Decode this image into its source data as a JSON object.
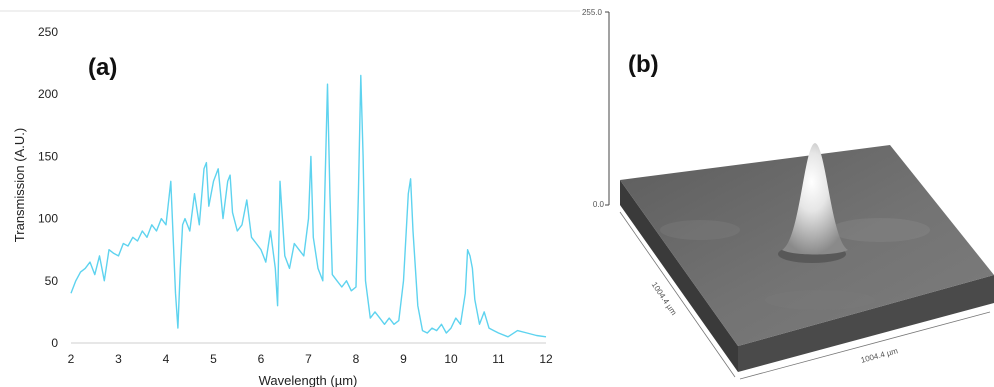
{
  "colors": {
    "series": "#5ed3ef",
    "axis": "#d0d0d0",
    "surface": "#6b6b6b"
  },
  "chart_data": [
    {
      "panel_label": "(a)",
      "type": "line",
      "xlabel": "Wavelength (µm)",
      "ylabel": "Transmission (A.U.)",
      "xlim": [
        2,
        12
      ],
      "ylim": [
        0,
        250
      ],
      "x_ticks": [
        "2",
        "3",
        "4",
        "5",
        "6",
        "7",
        "8",
        "9",
        "10",
        "11",
        "12"
      ],
      "y_ticks": [
        "0",
        "50",
        "100",
        "150",
        "200",
        "250"
      ],
      "grid": false,
      "series": [
        {
          "x": [
            2.0,
            2.1,
            2.2,
            2.3,
            2.4,
            2.5,
            2.6,
            2.7,
            2.8,
            2.9,
            3.0,
            3.1,
            3.2,
            3.3,
            3.4,
            3.5,
            3.6,
            3.7,
            3.8,
            3.9,
            4.0,
            4.1,
            4.2,
            4.25,
            4.3,
            4.35,
            4.4,
            4.5,
            4.6,
            4.7,
            4.8,
            4.85,
            4.9,
            5.0,
            5.1,
            5.2,
            5.3,
            5.35,
            5.4,
            5.5,
            5.6,
            5.7,
            5.8,
            5.9,
            6.0,
            6.1,
            6.2,
            6.3,
            6.35,
            6.4,
            6.5,
            6.6,
            6.7,
            6.8,
            6.9,
            7.0,
            7.05,
            7.1,
            7.2,
            7.3,
            7.35,
            7.4,
            7.45,
            7.5,
            7.6,
            7.7,
            7.8,
            7.9,
            8.0,
            8.05,
            8.1,
            8.15,
            8.2,
            8.3,
            8.4,
            8.5,
            8.6,
            8.7,
            8.8,
            8.9,
            9.0,
            9.1,
            9.15,
            9.2,
            9.3,
            9.4,
            9.5,
            9.6,
            9.7,
            9.8,
            9.9,
            10.0,
            10.1,
            10.2,
            10.3,
            10.35,
            10.4,
            10.45,
            10.5,
            10.6,
            10.7,
            10.8,
            10.9,
            11.0,
            11.2,
            11.4,
            11.6,
            11.8,
            12.0
          ],
          "y": [
            40,
            50,
            57,
            60,
            65,
            55,
            70,
            50,
            75,
            72,
            70,
            80,
            78,
            85,
            82,
            90,
            85,
            95,
            90,
            100,
            95,
            130,
            40,
            12,
            60,
            95,
            100,
            90,
            120,
            95,
            140,
            145,
            110,
            130,
            140,
            100,
            130,
            135,
            105,
            90,
            95,
            115,
            85,
            80,
            75,
            65,
            90,
            60,
            30,
            130,
            70,
            60,
            80,
            75,
            70,
            100,
            150,
            85,
            60,
            50,
            130,
            208,
            120,
            55,
            50,
            45,
            50,
            42,
            45,
            120,
            215,
            150,
            50,
            20,
            25,
            20,
            15,
            20,
            15,
            18,
            50,
            120,
            132,
            90,
            30,
            10,
            8,
            12,
            10,
            15,
            8,
            12,
            20,
            15,
            40,
            75,
            70,
            60,
            35,
            15,
            25,
            12,
            10,
            8,
            5,
            10,
            8,
            6,
            5
          ]
        }
      ]
    },
    {
      "panel_label": "(b)",
      "type": "surface",
      "z_ticks": [
        "255.0",
        "0.0"
      ],
      "x_extent_label": "1004.4 µm",
      "y_extent_label": "1004.4 µm"
    }
  ]
}
